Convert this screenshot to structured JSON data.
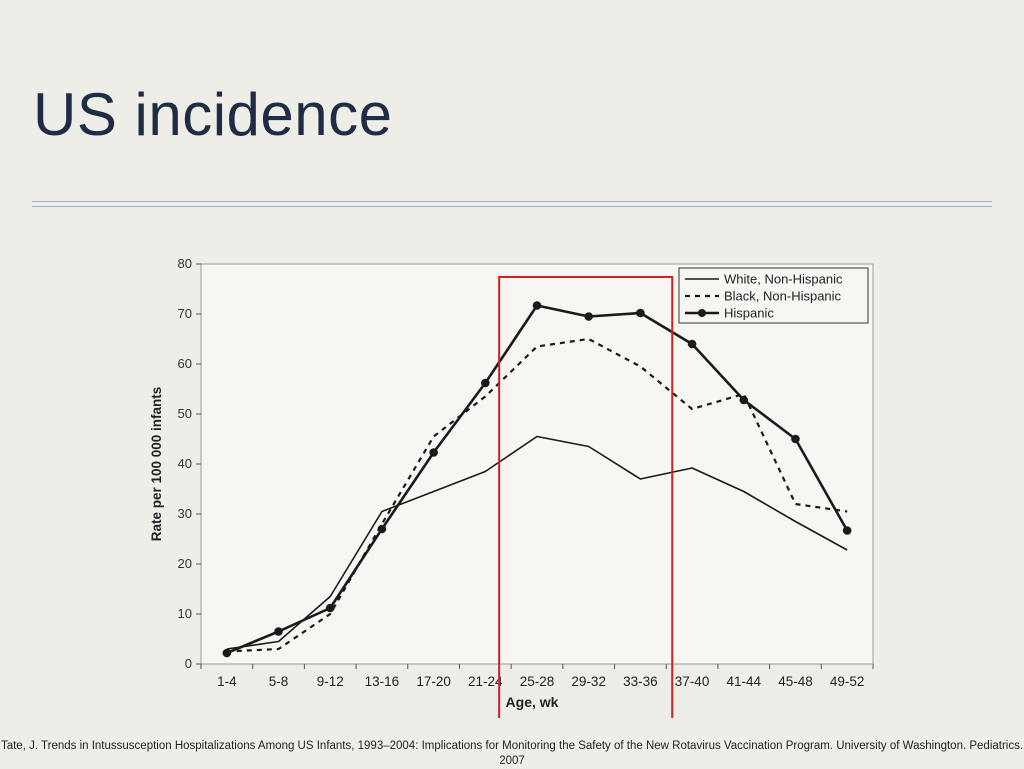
{
  "slide": {
    "title": "US incidence",
    "caption": "Tate, J. Trends in Intussusception Hospitalizations Among US Infants, 1993–2004: Implications for Monitoring the Safety of the New Rotavirus Vaccination Program. University of Washington. Pediatrics. 2007"
  },
  "colors": {
    "background": "#efede8",
    "title": "#1e2d45",
    "rule": "#9fb0c6",
    "series": "#1a1a1a",
    "highlight_box": "#cc2222"
  },
  "chart_data": {
    "type": "line",
    "xlabel": "Age, wk",
    "ylabel": "Rate per 100 000 infants",
    "ylim": [
      0,
      80
    ],
    "yticks": [
      0,
      10,
      20,
      30,
      40,
      50,
      60,
      70,
      80
    ],
    "grid": false,
    "legend_position": "top-right",
    "categories": [
      "1-4",
      "5-8",
      "9-12",
      "13-16",
      "17-20",
      "21-24",
      "25-28",
      "29-32",
      "33-36",
      "37-40",
      "41-44",
      "45-48",
      "49-52"
    ],
    "series": [
      {
        "name": "White, Non-Hispanic",
        "style": "solid",
        "marker": "none",
        "values": [
          3,
          4.5,
          13.5,
          30.5,
          34.5,
          38.5,
          45.5,
          43.5,
          37,
          39.2,
          34.5,
          28.5,
          22.8
        ]
      },
      {
        "name": "Black, Non-Hispanic",
        "style": "dashed",
        "marker": "none",
        "values": [
          2.5,
          3,
          10,
          28,
          45.5,
          53.5,
          63.5,
          65,
          59.5,
          51,
          54,
          32,
          30.5
        ]
      },
      {
        "name": "Hispanic",
        "style": "solid-bold",
        "marker": "circle",
        "values": [
          2.2,
          6.5,
          11.2,
          27,
          42.3,
          56.2,
          71.7,
          69.5,
          70.2,
          64,
          52.8,
          45,
          26.7
        ]
      }
    ],
    "highlight": {
      "from_category": "25-28",
      "to_category": "33-36",
      "color": "#cc2222"
    }
  }
}
